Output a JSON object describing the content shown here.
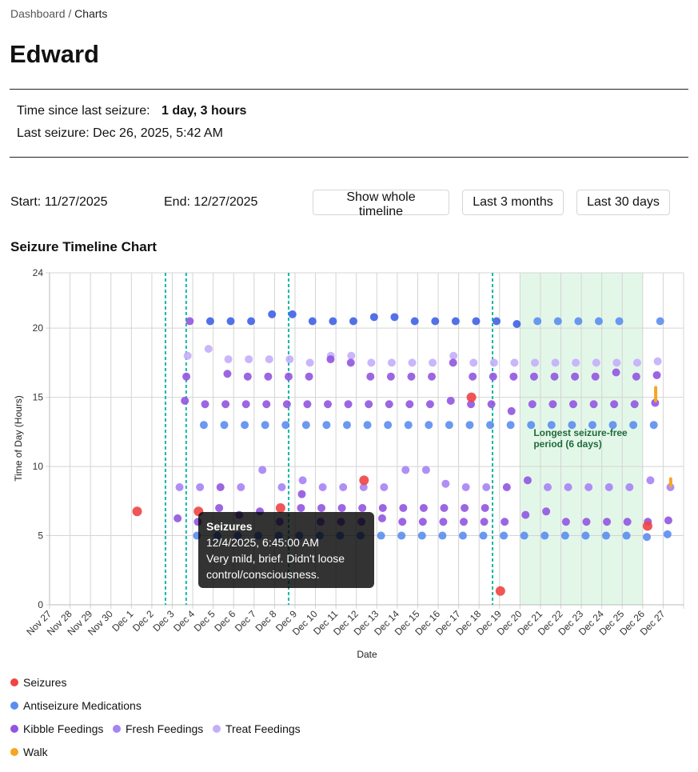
{
  "breadcrumb": {
    "parent": "Dashboard",
    "separator": " / ",
    "current": "Charts"
  },
  "page_title": "Edward",
  "summary": {
    "time_since_label": "Time since last seizure:",
    "time_since_value": "1 day, 3 hours",
    "last_seizure": "Last seizure: Dec 26, 2025, 5:42 AM"
  },
  "controls": {
    "start_label": "Start:",
    "start_value": "11/27/2025",
    "end_label": "End:",
    "end_value": "12/27/2025",
    "buttons": [
      "Show whole timeline",
      "Last 3 months",
      "Last 30 days"
    ]
  },
  "chart_title": "Seizure Timeline Chart",
  "tooltip": {
    "title": "Seizures",
    "datetime": "12/4/2025, 6:45:00 AM",
    "note": "Very mild, brief. Didn't loose control/consciousness."
  },
  "chart_data": {
    "type": "scatter",
    "xlabel": "Date",
    "ylabel": "Time of Day (Hours)",
    "xlim": [
      "2025-11-27",
      "2025-12-28"
    ],
    "ylim": [
      0,
      24
    ],
    "y_ticks": [
      "0",
      "5",
      "10",
      "15",
      "20",
      "24"
    ],
    "x_ticks": [
      "Nov 27",
      "Nov 28",
      "Nov 29",
      "Nov 30",
      "Dec 1",
      "Dec 2",
      "Dec 3",
      "Dec 4",
      "Dec 5",
      "Dec 6",
      "Dec 7",
      "Dec 8",
      "Dec 9",
      "Dec 10",
      "Dec 11",
      "Dec 12",
      "Dec 13",
      "Dec 14",
      "Dec 15",
      "Dec 16",
      "Dec 17",
      "Dec 18",
      "Dec 19",
      "Dec 20",
      "Dec 21",
      "Dec 22",
      "Dec 23",
      "Dec 24",
      "Dec 25",
      "Dec 26",
      "Dec 27"
    ],
    "grid": true,
    "legend_placement": "bottom",
    "highlight": {
      "start": "2025-12-20",
      "end": "2025-12-26",
      "label_line1": "Longest seizure-free",
      "label_line2": "period (6 days)",
      "color": "#dcf5e3",
      "label_color": "#1e6b3a"
    },
    "event_markers": {
      "color": "#14b8a6",
      "times": [
        [
          "2025-12-02",
          16.0
        ],
        [
          "2025-12-03",
          16.3
        ],
        [
          "2025-12-08",
          16.5
        ],
        [
          "2025-12-18",
          15.8
        ]
      ]
    },
    "series": [
      {
        "name": "Seizures",
        "color": "#ef4444",
        "points": [
          [
            "2025-12-01",
            6.75
          ],
          [
            "2025-12-04",
            6.75
          ],
          [
            "2025-12-08",
            7.0
          ],
          [
            "2025-12-12",
            9.0
          ],
          [
            "2025-12-17",
            15.0
          ],
          [
            "2025-12-19",
            1.0
          ],
          [
            "2025-12-26",
            5.7
          ]
        ]
      },
      {
        "name": "Antiseizure Medications",
        "color": "#5b8def",
        "points": [
          [
            "2025-12-04",
            20.5
          ],
          [
            "2025-12-05",
            20.5
          ],
          [
            "2025-12-06",
            20.5
          ],
          [
            "2025-12-07",
            21.0
          ],
          [
            "2025-12-08",
            21.0
          ],
          [
            "2025-12-09",
            20.5
          ],
          [
            "2025-12-10",
            20.5
          ],
          [
            "2025-12-11",
            20.5
          ],
          [
            "2025-12-12",
            20.8
          ],
          [
            "2025-12-13",
            20.8
          ],
          [
            "2025-12-14",
            20.5
          ],
          [
            "2025-12-15",
            20.5
          ],
          [
            "2025-12-16",
            20.5
          ],
          [
            "2025-12-17",
            20.5
          ],
          [
            "2025-12-18",
            20.5
          ],
          [
            "2025-12-19",
            20.3
          ],
          [
            "2025-12-20",
            20.5
          ],
          [
            "2025-12-21",
            20.5
          ],
          [
            "2025-12-22",
            20.5
          ],
          [
            "2025-12-23",
            20.5
          ],
          [
            "2025-12-24",
            20.5
          ],
          [
            "2025-12-26",
            20.5
          ],
          [
            "2025-12-04",
            13
          ],
          [
            "2025-12-05",
            13
          ],
          [
            "2025-12-06",
            13
          ],
          [
            "2025-12-07",
            13
          ],
          [
            "2025-12-08",
            13
          ],
          [
            "2025-12-09",
            13
          ],
          [
            "2025-12-10",
            13
          ],
          [
            "2025-12-11",
            13
          ],
          [
            "2025-12-12",
            13
          ],
          [
            "2025-12-13",
            13
          ],
          [
            "2025-12-14",
            13
          ],
          [
            "2025-12-15",
            13
          ],
          [
            "2025-12-16",
            13
          ],
          [
            "2025-12-17",
            13
          ],
          [
            "2025-12-18",
            13
          ],
          [
            "2025-12-19",
            13
          ],
          [
            "2025-12-20",
            13
          ],
          [
            "2025-12-21",
            13
          ],
          [
            "2025-12-22",
            13
          ],
          [
            "2025-12-23",
            13
          ],
          [
            "2025-12-24",
            13
          ],
          [
            "2025-12-25",
            13
          ],
          [
            "2025-12-26",
            13
          ],
          [
            "2025-12-04",
            5
          ],
          [
            "2025-12-05",
            5
          ],
          [
            "2025-12-06",
            5
          ],
          [
            "2025-12-07",
            5
          ],
          [
            "2025-12-08",
            5
          ],
          [
            "2025-12-09",
            5
          ],
          [
            "2025-12-10",
            5
          ],
          [
            "2025-12-11",
            5
          ],
          [
            "2025-12-12",
            5
          ],
          [
            "2025-12-13",
            5
          ],
          [
            "2025-12-14",
            5
          ],
          [
            "2025-12-15",
            5
          ],
          [
            "2025-12-16",
            5
          ],
          [
            "2025-12-17",
            5
          ],
          [
            "2025-12-18",
            5
          ],
          [
            "2025-12-19",
            5
          ],
          [
            "2025-12-20",
            5
          ],
          [
            "2025-12-21",
            5
          ],
          [
            "2025-12-22",
            5
          ],
          [
            "2025-12-23",
            5
          ],
          [
            "2025-12-24",
            5
          ],
          [
            "2025-12-25",
            5
          ],
          [
            "2025-12-26",
            4.9
          ],
          [
            "2025-12-27",
            5.1
          ]
        ]
      },
      {
        "name": "Kibble Feedings",
        "color": "#9155e0",
        "points": [
          [
            "2025-12-03",
            20.5
          ],
          [
            "2025-12-03",
            16.5
          ],
          [
            "2025-12-03",
            14.75
          ],
          [
            "2025-12-03",
            6.25
          ],
          [
            "2025-12-04",
            14.5
          ],
          [
            "2025-12-04",
            6.0
          ],
          [
            "2025-12-05",
            16.7
          ],
          [
            "2025-12-05",
            14.5
          ],
          [
            "2025-12-05",
            8.5
          ],
          [
            "2025-12-05",
            7.0
          ],
          [
            "2025-12-06",
            16.5
          ],
          [
            "2025-12-06",
            14.5
          ],
          [
            "2025-12-06",
            6.5
          ],
          [
            "2025-12-07",
            16.5
          ],
          [
            "2025-12-07",
            14.5
          ],
          [
            "2025-12-07",
            6.75
          ],
          [
            "2025-12-08",
            16.5
          ],
          [
            "2025-12-08",
            14.5
          ],
          [
            "2025-12-08",
            6.0
          ],
          [
            "2025-12-09",
            16.5
          ],
          [
            "2025-12-09",
            14.5
          ],
          [
            "2025-12-09",
            8.0
          ],
          [
            "2025-12-09",
            7.0
          ],
          [
            "2025-12-10",
            17.75
          ],
          [
            "2025-12-10",
            14.5
          ],
          [
            "2025-12-10",
            7.0
          ],
          [
            "2025-12-10",
            6.0
          ],
          [
            "2025-12-11",
            17.5
          ],
          [
            "2025-12-11",
            14.5
          ],
          [
            "2025-12-11",
            7.0
          ],
          [
            "2025-12-11",
            6.0
          ],
          [
            "2025-12-12",
            16.5
          ],
          [
            "2025-12-12",
            14.5
          ],
          [
            "2025-12-12",
            7.0
          ],
          [
            "2025-12-12",
            6.0
          ],
          [
            "2025-12-13",
            16.5
          ],
          [
            "2025-12-13",
            14.5
          ],
          [
            "2025-12-13",
            7.0
          ],
          [
            "2025-12-13",
            6.25
          ],
          [
            "2025-12-14",
            16.5
          ],
          [
            "2025-12-14",
            14.5
          ],
          [
            "2025-12-14",
            7.0
          ],
          [
            "2025-12-14",
            6.0
          ],
          [
            "2025-12-15",
            16.5
          ],
          [
            "2025-12-15",
            14.5
          ],
          [
            "2025-12-15",
            7.0
          ],
          [
            "2025-12-15",
            6.0
          ],
          [
            "2025-12-16",
            17.5
          ],
          [
            "2025-12-16",
            14.75
          ],
          [
            "2025-12-16",
            7.0
          ],
          [
            "2025-12-16",
            6.0
          ],
          [
            "2025-12-17",
            16.5
          ],
          [
            "2025-12-17",
            14.5
          ],
          [
            "2025-12-17",
            7.0
          ],
          [
            "2025-12-17",
            6.0
          ],
          [
            "2025-12-18",
            16.5
          ],
          [
            "2025-12-18",
            14.5
          ],
          [
            "2025-12-18",
            7.0
          ],
          [
            "2025-12-18",
            6.0
          ],
          [
            "2025-12-19",
            16.5
          ],
          [
            "2025-12-19",
            14.0
          ],
          [
            "2025-12-19",
            8.5
          ],
          [
            "2025-12-19",
            6.0
          ],
          [
            "2025-12-20",
            16.5
          ],
          [
            "2025-12-20",
            14.5
          ],
          [
            "2025-12-20",
            9.0
          ],
          [
            "2025-12-20",
            6.5
          ],
          [
            "2025-12-21",
            16.5
          ],
          [
            "2025-12-21",
            14.5
          ],
          [
            "2025-12-21",
            6.75
          ],
          [
            "2025-12-22",
            16.5
          ],
          [
            "2025-12-22",
            14.5
          ],
          [
            "2025-12-22",
            6.0
          ],
          [
            "2025-12-23",
            16.5
          ],
          [
            "2025-12-23",
            14.5
          ],
          [
            "2025-12-23",
            6.0
          ],
          [
            "2025-12-24",
            16.8
          ],
          [
            "2025-12-24",
            14.5
          ],
          [
            "2025-12-24",
            6.0
          ],
          [
            "2025-12-25",
            16.5
          ],
          [
            "2025-12-25",
            14.5
          ],
          [
            "2025-12-25",
            6.0
          ],
          [
            "2025-12-26",
            16.6
          ],
          [
            "2025-12-26",
            14.6
          ],
          [
            "2025-12-26",
            6.0
          ],
          [
            "2025-12-27",
            6.1
          ]
        ]
      },
      {
        "name": "Fresh Feedings",
        "color": "#a683f5",
        "points": [
          [
            "2025-12-03",
            8.5
          ],
          [
            "2025-12-04",
            8.5
          ],
          [
            "2025-12-06",
            8.5
          ],
          [
            "2025-12-07",
            9.75
          ],
          [
            "2025-12-08",
            8.5
          ],
          [
            "2025-12-09",
            9.0
          ],
          [
            "2025-12-10",
            8.5
          ],
          [
            "2025-12-11",
            8.5
          ],
          [
            "2025-12-12",
            8.5
          ],
          [
            "2025-12-13",
            8.5
          ],
          [
            "2025-12-14",
            9.75
          ],
          [
            "2025-12-15",
            9.75
          ],
          [
            "2025-12-16",
            8.75
          ],
          [
            "2025-12-17",
            8.5
          ],
          [
            "2025-12-18",
            8.5
          ],
          [
            "2025-12-21",
            8.5
          ],
          [
            "2025-12-22",
            8.5
          ],
          [
            "2025-12-23",
            8.5
          ],
          [
            "2025-12-24",
            8.5
          ],
          [
            "2025-12-25",
            8.5
          ],
          [
            "2025-12-26",
            9.0
          ],
          [
            "2025-12-27",
            8.5
          ]
        ]
      },
      {
        "name": "Treat Feedings",
        "color": "#c3aefb",
        "points": [
          [
            "2025-12-03",
            18.0
          ],
          [
            "2025-12-04",
            18.5
          ],
          [
            "2025-12-05",
            17.75
          ],
          [
            "2025-12-06",
            17.75
          ],
          [
            "2025-12-07",
            17.75
          ],
          [
            "2025-12-08",
            17.75
          ],
          [
            "2025-12-09",
            17.5
          ],
          [
            "2025-12-10",
            18.0
          ],
          [
            "2025-12-11",
            18.0
          ],
          [
            "2025-12-12",
            17.5
          ],
          [
            "2025-12-13",
            17.5
          ],
          [
            "2025-12-14",
            17.5
          ],
          [
            "2025-12-15",
            17.5
          ],
          [
            "2025-12-16",
            18.0
          ],
          [
            "2025-12-17",
            17.5
          ],
          [
            "2025-12-18",
            17.5
          ],
          [
            "2025-12-19",
            17.5
          ],
          [
            "2025-12-20",
            17.5
          ],
          [
            "2025-12-21",
            17.5
          ],
          [
            "2025-12-22",
            17.5
          ],
          [
            "2025-12-23",
            17.5
          ],
          [
            "2025-12-24",
            17.5
          ],
          [
            "2025-12-25",
            17.5
          ],
          [
            "2025-12-26",
            17.6
          ]
        ]
      },
      {
        "name": "Walk",
        "color": "#f5a623",
        "ranges": [
          [
            "2025-12-26",
            14.75,
            15.7
          ],
          [
            "2025-12-27",
            8.6,
            9.1
          ]
        ]
      }
    ]
  }
}
